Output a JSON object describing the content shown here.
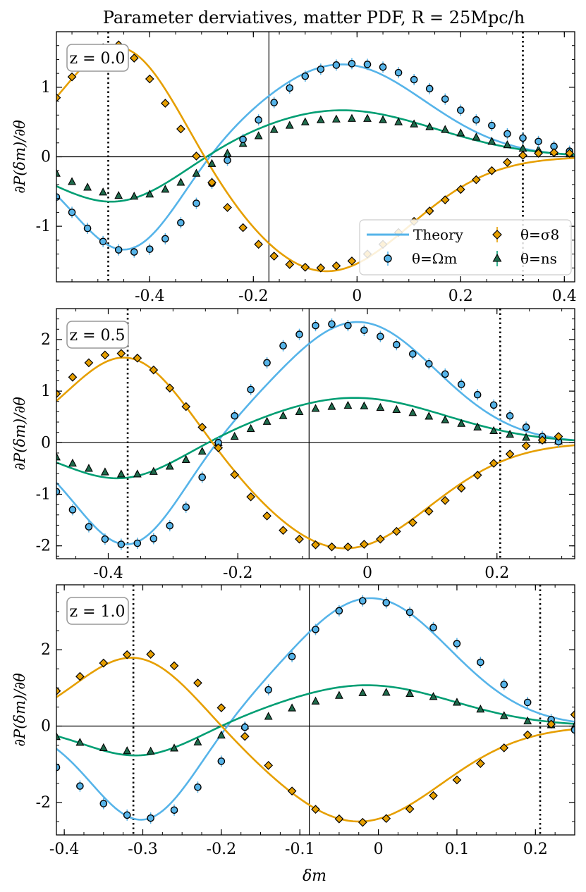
{
  "title": "Parameter derviatives, matter PDF, R = 25Mpc/h",
  "ylabel": "∂P(δm)/∂θ",
  "xlabel": "δm",
  "legend": {
    "theory": "Theory",
    "omega": "θ=Ωm",
    "sigma8": "θ=σ8",
    "ns": "θ=ns"
  },
  "colors": {
    "omega": "#56b4e9",
    "sigma8": "#e69f00",
    "ns": "#009e73",
    "ns_marker": "#1f6b4c"
  },
  "chart_data": [
    {
      "type": "line",
      "label": "z = 0.0",
      "xlim": [
        -0.58,
        0.42
      ],
      "ylim": [
        -1.8,
        1.8
      ],
      "xticks": [
        -0.4,
        -0.2,
        0.0,
        0.2,
        0.4
      ],
      "yticks": [
        -1,
        0,
        1
      ],
      "vline_solid": -0.17,
      "vlines_dotted": [
        -0.48,
        0.32
      ],
      "theory": {
        "omega": {
          "A": 1.33,
          "mu": -0.03,
          "sig": 0.16,
          "B": -1.38,
          "mu2": -0.445,
          "sig2": 0.1,
          "c": 0.0
        },
        "sigma8": {
          "A": 1.65,
          "mu": -0.455,
          "sig": 0.11,
          "B": -1.65,
          "mu2": -0.06,
          "sig2": 0.16,
          "c": 0.0
        },
        "ns": {
          "A": 0.67,
          "mu": -0.03,
          "sig": 0.18,
          "B": -0.68,
          "mu2": -0.465,
          "sig2": 0.12,
          "c": 0.0
        }
      },
      "sim": {
        "omega": {
          "x": [
            -0.58,
            -0.55,
            -0.52,
            -0.49,
            -0.46,
            -0.43,
            -0.4,
            -0.37,
            -0.34,
            -0.31,
            -0.28,
            -0.25,
            -0.22,
            -0.19,
            -0.16,
            -0.13,
            -0.1,
            -0.07,
            -0.04,
            -0.01,
            0.02,
            0.05,
            0.08,
            0.11,
            0.14,
            0.17,
            0.2,
            0.23,
            0.26,
            0.29,
            0.32,
            0.35,
            0.38,
            0.41
          ],
          "y": [
            -0.58,
            -0.8,
            -1.03,
            -1.22,
            -1.34,
            -1.37,
            -1.33,
            -1.18,
            -0.95,
            -0.67,
            -0.38,
            -0.05,
            0.25,
            0.53,
            0.78,
            0.99,
            1.16,
            1.26,
            1.32,
            1.34,
            1.33,
            1.29,
            1.21,
            1.11,
            0.98,
            0.83,
            0.67,
            0.53,
            0.45,
            0.33,
            0.27,
            0.22,
            0.15,
            0.08
          ]
        },
        "sigma8": {
          "x": [
            -0.58,
            -0.55,
            -0.52,
            -0.49,
            -0.46,
            -0.43,
            -0.4,
            -0.37,
            -0.34,
            -0.31,
            -0.28,
            -0.25,
            -0.22,
            -0.19,
            -0.16,
            -0.13,
            -0.1,
            -0.07,
            -0.04,
            -0.01,
            0.02,
            0.05,
            0.08,
            0.11,
            0.14,
            0.17,
            0.2,
            0.23,
            0.26,
            0.29,
            0.32,
            0.35,
            0.38,
            0.41
          ],
          "y": [
            0.85,
            1.15,
            1.4,
            1.57,
            1.61,
            1.42,
            1.12,
            0.77,
            0.4,
            0.01,
            -0.37,
            -0.73,
            -1.02,
            -1.26,
            -1.43,
            -1.55,
            -1.59,
            -1.6,
            -1.57,
            -1.5,
            -1.4,
            -1.26,
            -1.09,
            -0.93,
            -0.78,
            -0.62,
            -0.47,
            -0.33,
            -0.2,
            -0.08,
            0.02,
            0.05,
            0.06,
            0.05
          ]
        },
        "ns": {
          "x": [
            -0.58,
            -0.55,
            -0.52,
            -0.49,
            -0.46,
            -0.43,
            -0.4,
            -0.37,
            -0.34,
            -0.31,
            -0.28,
            -0.25,
            -0.22,
            -0.19,
            -0.16,
            -0.13,
            -0.1,
            -0.07,
            -0.04,
            -0.01,
            0.02,
            0.05,
            0.08,
            0.11,
            0.14,
            0.17,
            0.2,
            0.23,
            0.26,
            0.29,
            0.32,
            0.35,
            0.38,
            0.41
          ],
          "y": [
            -0.24,
            -0.36,
            -0.44,
            -0.51,
            -0.56,
            -0.57,
            -0.54,
            -0.47,
            -0.37,
            -0.24,
            -0.1,
            0.05,
            0.19,
            0.3,
            0.39,
            0.45,
            0.5,
            0.53,
            0.54,
            0.55,
            0.55,
            0.53,
            0.5,
            0.47,
            0.43,
            0.39,
            0.34,
            0.28,
            0.22,
            0.17,
            0.12,
            0.1,
            0.07,
            0.04
          ]
        }
      }
    },
    {
      "type": "line",
      "label": "z = 0.5",
      "xlim": [
        -0.48,
        0.32
      ],
      "ylim": [
        -2.25,
        2.6
      ],
      "xticks": [
        -0.4,
        -0.2,
        0.0,
        0.2
      ],
      "yticks": [
        -2,
        -1,
        0,
        1,
        2
      ],
      "vline_solid": -0.09,
      "vlines_dotted": [
        -0.37,
        0.205
      ],
      "theory": {
        "omega": {
          "A": 2.34,
          "mu": -0.015,
          "sig": 0.12,
          "B": -2.0,
          "mu2": -0.37,
          "sig2": 0.08,
          "c": 0.0
        },
        "sigma8": {
          "A": 1.72,
          "mu": -0.37,
          "sig": 0.09,
          "B": -2.05,
          "mu2": -0.035,
          "sig2": 0.13,
          "c": 0.0
        },
        "ns": {
          "A": 0.87,
          "mu": -0.02,
          "sig": 0.14,
          "B": -0.72,
          "mu2": -0.38,
          "sig2": 0.09,
          "c": 0.0
        }
      },
      "sim": {
        "omega": {
          "x": [
            -0.48,
            -0.455,
            -0.43,
            -0.405,
            -0.38,
            -0.355,
            -0.33,
            -0.305,
            -0.28,
            -0.255,
            -0.23,
            -0.205,
            -0.18,
            -0.155,
            -0.13,
            -0.105,
            -0.08,
            -0.055,
            -0.03,
            -0.005,
            0.02,
            0.045,
            0.07,
            0.095,
            0.12,
            0.145,
            0.17,
            0.195,
            0.22,
            0.245,
            0.27,
            0.295
          ],
          "y": [
            -0.95,
            -1.3,
            -1.63,
            -1.87,
            -1.97,
            -1.95,
            -1.86,
            -1.61,
            -1.25,
            -0.67,
            0.0,
            0.52,
            1.03,
            1.55,
            1.88,
            2.1,
            2.27,
            2.3,
            2.27,
            2.18,
            2.06,
            1.9,
            1.72,
            1.53,
            1.33,
            1.13,
            0.93,
            0.73,
            0.52,
            0.3,
            0.12,
            0.02
          ]
        },
        "sigma8": {
          "x": [
            -0.48,
            -0.455,
            -0.43,
            -0.405,
            -0.38,
            -0.355,
            -0.33,
            -0.305,
            -0.28,
            -0.255,
            -0.23,
            -0.205,
            -0.18,
            -0.155,
            -0.13,
            -0.105,
            -0.08,
            -0.055,
            -0.03,
            -0.005,
            0.02,
            0.045,
            0.07,
            0.095,
            0.12,
            0.145,
            0.17,
            0.195,
            0.22,
            0.245,
            0.27,
            0.295
          ],
          "y": [
            0.95,
            1.27,
            1.55,
            1.7,
            1.73,
            1.64,
            1.41,
            1.06,
            0.7,
            0.3,
            -0.1,
            -0.62,
            -1.05,
            -1.42,
            -1.7,
            -1.87,
            -1.98,
            -2.02,
            -2.02,
            -1.97,
            -1.87,
            -1.72,
            -1.55,
            -1.33,
            -1.12,
            -0.88,
            -0.63,
            -0.4,
            -0.22,
            -0.06,
            0.05,
            0.12
          ]
        },
        "ns": {
          "x": [
            -0.48,
            -0.455,
            -0.43,
            -0.405,
            -0.38,
            -0.355,
            -0.33,
            -0.305,
            -0.28,
            -0.255,
            -0.23,
            -0.205,
            -0.18,
            -0.155,
            -0.13,
            -0.105,
            -0.08,
            -0.055,
            -0.03,
            -0.005,
            0.02,
            0.045,
            0.07,
            0.095,
            0.12,
            0.145,
            0.17,
            0.195,
            0.22,
            0.245,
            0.27,
            0.295
          ],
          "y": [
            -0.28,
            -0.4,
            -0.5,
            -0.57,
            -0.61,
            -0.61,
            -0.56,
            -0.46,
            -0.33,
            -0.17,
            0.0,
            0.12,
            0.27,
            0.41,
            0.52,
            0.6,
            0.66,
            0.7,
            0.72,
            0.71,
            0.68,
            0.64,
            0.58,
            0.51,
            0.44,
            0.37,
            0.3,
            0.23,
            0.16,
            0.1,
            0.05,
            0.03
          ]
        }
      }
    },
    {
      "type": "line",
      "label": "z = 1.0",
      "xlim": [
        -0.41,
        0.25
      ],
      "ylim": [
        -2.85,
        3.7
      ],
      "xticks": [
        -0.4,
        -0.3,
        -0.2,
        -0.1,
        0.0,
        0.1,
        0.2
      ],
      "yticks": [
        -2,
        0,
        2
      ],
      "vline_solid": -0.088,
      "vlines_dotted": [
        -0.312,
        0.206
      ],
      "theory": {
        "omega": {
          "A": 3.35,
          "mu": -0.01,
          "sig": 0.1,
          "B": -2.5,
          "mu2": -0.3,
          "sig2": 0.065,
          "c": 0.0
        },
        "sigma8": {
          "A": 1.85,
          "mu": -0.31,
          "sig": 0.075,
          "B": -2.5,
          "mu2": -0.025,
          "sig2": 0.105,
          "c": 0.0
        },
        "ns": {
          "A": 1.07,
          "mu": -0.015,
          "sig": 0.11,
          "B": -0.8,
          "mu2": -0.305,
          "sig2": 0.07,
          "c": 0.0
        }
      },
      "sim": {
        "omega": {
          "x": [
            -0.41,
            -0.38,
            -0.35,
            -0.32,
            -0.29,
            -0.26,
            -0.23,
            -0.2,
            -0.17,
            -0.14,
            -0.11,
            -0.08,
            -0.05,
            -0.02,
            0.01,
            0.04,
            0.07,
            0.1,
            0.13,
            0.16,
            0.19,
            0.22,
            0.25
          ],
          "y": [
            -1.08,
            -1.57,
            -2.03,
            -2.33,
            -2.41,
            -2.2,
            -1.6,
            -0.92,
            -0.03,
            0.95,
            1.82,
            2.53,
            3.02,
            3.28,
            3.23,
            2.98,
            2.58,
            2.16,
            1.67,
            1.09,
            0.62,
            0.17,
            -0.1
          ]
        },
        "sigma8": {
          "x": [
            -0.41,
            -0.38,
            -0.35,
            -0.32,
            -0.29,
            -0.26,
            -0.23,
            -0.2,
            -0.17,
            -0.14,
            -0.11,
            -0.08,
            -0.05,
            -0.02,
            0.01,
            0.04,
            0.07,
            0.1,
            0.13,
            0.16,
            0.19,
            0.22,
            0.25
          ],
          "y": [
            0.92,
            1.3,
            1.65,
            1.87,
            1.88,
            1.58,
            1.13,
            0.48,
            -0.27,
            -1.03,
            -1.7,
            -2.18,
            -2.43,
            -2.52,
            -2.42,
            -2.17,
            -1.82,
            -1.41,
            -0.98,
            -0.57,
            -0.23,
            0.05,
            0.3
          ]
        },
        "ns": {
          "x": [
            -0.41,
            -0.38,
            -0.35,
            -0.32,
            -0.29,
            -0.26,
            -0.23,
            -0.2,
            -0.17,
            -0.14,
            -0.11,
            -0.08,
            -0.05,
            -0.02,
            0.01,
            0.04,
            0.07,
            0.1,
            0.13,
            0.16,
            0.19,
            0.22,
            0.25
          ],
          "y": [
            -0.28,
            -0.43,
            -0.57,
            -0.65,
            -0.66,
            -0.58,
            -0.42,
            -0.24,
            0.0,
            0.25,
            0.47,
            0.65,
            0.8,
            0.87,
            0.88,
            0.85,
            0.77,
            0.62,
            0.44,
            0.27,
            0.13,
            0.03,
            0.0
          ]
        }
      }
    }
  ]
}
